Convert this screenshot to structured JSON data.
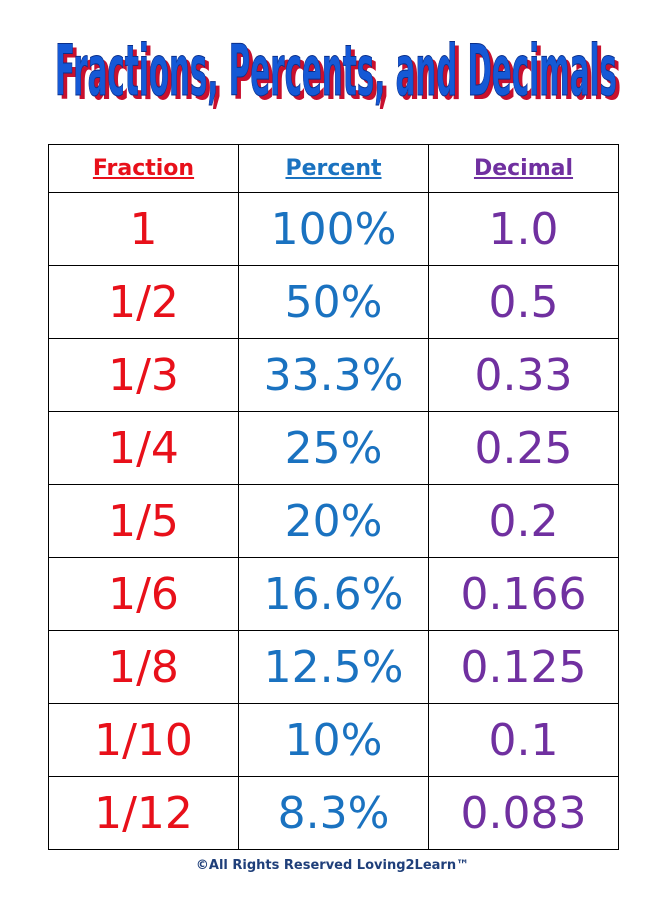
{
  "title": "Fractions, Percents, and Decimals",
  "table": {
    "header": [
      "Fraction",
      "Percent",
      "Decimal"
    ],
    "rows": [
      [
        "1",
        "100%",
        "1.0"
      ],
      [
        "1/2",
        "50%",
        "0.5"
      ],
      [
        "1/3",
        "33.3%",
        "0.33"
      ],
      [
        "1/4",
        "25%",
        "0.25"
      ],
      [
        "1/5",
        "20%",
        "0.2"
      ],
      [
        "1/6",
        "16.6%",
        "0.166"
      ],
      [
        "1/8",
        "12.5%",
        "0.125"
      ],
      [
        "1/10",
        "10%",
        "0.1"
      ],
      [
        "1/12",
        "8.3%",
        "0.083"
      ]
    ]
  },
  "footer": "©All Rights Reserved Loving2Learn™"
}
